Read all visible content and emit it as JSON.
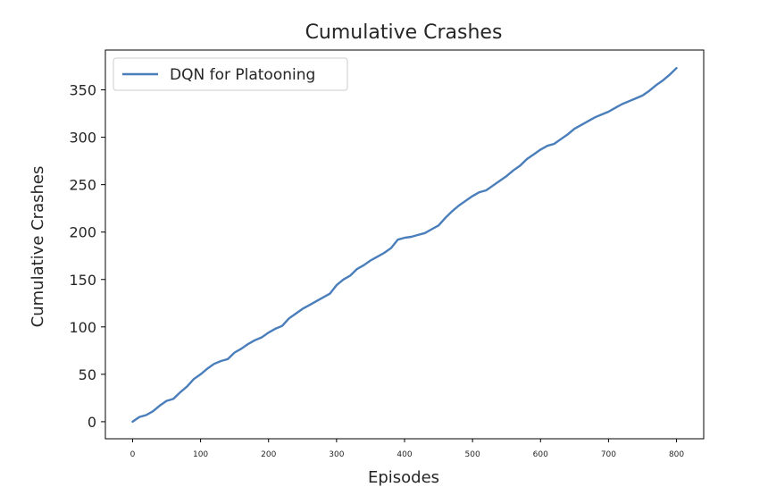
{
  "chart_data": {
    "type": "line",
    "title": "Cumulative Crashes",
    "xlabel": "Episodes",
    "ylabel": "Cumulative Crashes",
    "xlim": [
      -40,
      840
    ],
    "ylim": [
      -18,
      392
    ],
    "xticks": [
      0,
      100,
      200,
      300,
      400,
      500,
      600,
      700,
      800
    ],
    "yticks": [
      0,
      50,
      100,
      150,
      200,
      250,
      300,
      350
    ],
    "grid": false,
    "legend": "upper-left",
    "series": [
      {
        "name": "DQN for Platooning",
        "color": "#4a7ebb",
        "x": [
          0,
          10,
          20,
          30,
          40,
          50,
          60,
          70,
          80,
          90,
          100,
          110,
          120,
          130,
          140,
          150,
          160,
          170,
          180,
          190,
          200,
          210,
          220,
          230,
          240,
          250,
          260,
          270,
          280,
          290,
          300,
          310,
          320,
          330,
          340,
          350,
          360,
          370,
          380,
          390,
          400,
          410,
          420,
          430,
          440,
          450,
          460,
          470,
          480,
          490,
          500,
          510,
          520,
          530,
          540,
          550,
          560,
          570,
          580,
          590,
          600,
          610,
          620,
          630,
          640,
          650,
          660,
          670,
          680,
          690,
          700,
          710,
          720,
          730,
          740,
          750,
          760,
          770,
          780,
          790,
          800
        ],
        "y": [
          0,
          5,
          7,
          11,
          17,
          22,
          24,
          31,
          37,
          45,
          50,
          56,
          61,
          64,
          66,
          73,
          77,
          82,
          86,
          89,
          94,
          98,
          101,
          109,
          114,
          119,
          123,
          127,
          131,
          135,
          144,
          150,
          154,
          161,
          165,
          170,
          174,
          178,
          183,
          192,
          194,
          195,
          197,
          199,
          203,
          207,
          215,
          222,
          228,
          233,
          238,
          242,
          244,
          249,
          254,
          259,
          265,
          270,
          277,
          282,
          287,
          291,
          293,
          298,
          303,
          309,
          313,
          317,
          321,
          324,
          327,
          331,
          335,
          338,
          341,
          344,
          349,
          355,
          360,
          366,
          373
        ]
      }
    ]
  }
}
